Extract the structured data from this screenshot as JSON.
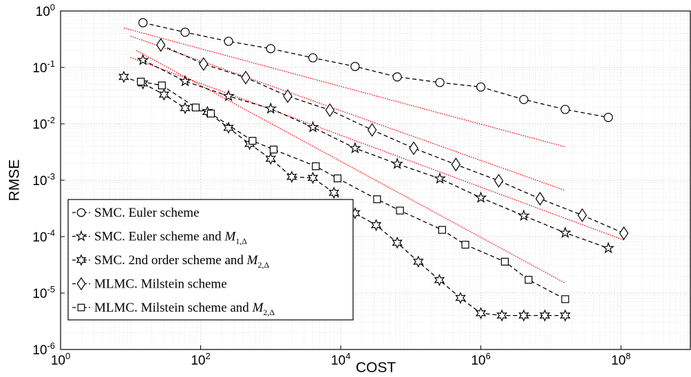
{
  "chart_data": {
    "type": "scatter",
    "xlabel": "COST",
    "ylabel": "RMSE",
    "xscale": "log",
    "yscale": "log",
    "xlim": [
      1,
      1000000000
    ],
    "ylim": [
      1e-06,
      1
    ],
    "xticks": [
      {
        "value": 1,
        "base": "10",
        "exp": "0"
      },
      {
        "value": 100,
        "base": "10",
        "exp": "2"
      },
      {
        "value": 10000,
        "base": "10",
        "exp": "4"
      },
      {
        "value": 1000000,
        "base": "10",
        "exp": "6"
      },
      {
        "value": 100000000,
        "base": "10",
        "exp": "8"
      }
    ],
    "yticks": [
      {
        "value": 1,
        "base": "10",
        "exp": "0"
      },
      {
        "value": 0.1,
        "base": "10",
        "exp": "-1"
      },
      {
        "value": 0.01,
        "base": "10",
        "exp": "-2"
      },
      {
        "value": 0.001,
        "base": "10",
        "exp": "-3"
      },
      {
        "value": 0.0001,
        "base": "10",
        "exp": "-4"
      },
      {
        "value": 1e-05,
        "base": "10",
        "exp": "-5"
      },
      {
        "value": 1e-06,
        "base": "10",
        "exp": "-6"
      }
    ],
    "grid": true,
    "minor_grid": true,
    "legend_position": "bottom-left",
    "series": [
      {
        "name": "SMC. Euler scheme",
        "name_parts": {
          "text": "SMC. Euler scheme",
          "math": "",
          "sub": ""
        },
        "marker": "circle",
        "x": [
          15,
          60,
          250,
          1000,
          4000,
          16000,
          64000,
          260000,
          1000000,
          4100000,
          16000000,
          66000000
        ],
        "y": [
          0.62,
          0.42,
          0.29,
          0.215,
          0.148,
          0.104,
          0.068,
          0.054,
          0.045,
          0.027,
          0.018,
          0.013
        ]
      },
      {
        "name": "SMC. Euler scheme and M1,Δ",
        "name_parts": {
          "text": "SMC. Euler scheme and ",
          "math": "M",
          "sub": "1,Δ"
        },
        "marker": "star5",
        "x": [
          15,
          60,
          250,
          1000,
          4000,
          16000,
          64000,
          260000,
          1000000,
          4100000,
          16000000,
          66000000
        ],
        "y": [
          0.135,
          0.057,
          0.031,
          0.0186,
          0.0087,
          0.0037,
          0.00195,
          0.00107,
          0.00049,
          0.000235,
          0.000117,
          6.25e-05
        ]
      },
      {
        "name": "SMC. 2nd order scheme and M2,Δ",
        "name_parts": {
          "text": "SMC. 2nd order scheme and ",
          "math": "M",
          "sub": "2,Δ"
        },
        "marker": "star6",
        "x": [
          8,
          15,
          30,
          60,
          125,
          250,
          500,
          1000,
          2000,
          4000,
          8000,
          16000,
          32000,
          64000,
          128000,
          256000,
          512000,
          1000000,
          2000000,
          4100000,
          8200000,
          16000000
        ],
        "y": [
          0.068,
          0.052,
          0.033,
          0.019,
          0.0162,
          0.0085,
          0.0044,
          0.0024,
          0.00115,
          0.0011,
          0.0006,
          0.00026,
          0.00016,
          7.8e-05,
          3.6e-05,
          1.7e-05,
          8.2e-06,
          4.4e-06,
          4e-06,
          4e-06,
          4e-06,
          4e-06
        ]
      },
      {
        "name": "MLMC. Milstein scheme",
        "name_parts": {
          "text": "MLMC. Milstein scheme",
          "math": "",
          "sub": ""
        },
        "marker": "diamond",
        "x": [
          27,
          110,
          440,
          1750,
          7000,
          28000,
          110000,
          440000,
          1800000,
          7000000,
          28000000,
          110000000
        ],
        "y": [
          0.25,
          0.115,
          0.066,
          0.031,
          0.0175,
          0.0078,
          0.0037,
          0.0019,
          0.00098,
          0.00047,
          0.00024,
          0.000115
        ]
      },
      {
        "name": "MLMC. Milstein scheme and M2,Δ",
        "name_parts": {
          "text": "MLMC. Milstein scheme and ",
          "math": "M",
          "sub": "2,Δ"
        },
        "marker": "square",
        "x": [
          14,
          28,
          85,
          140,
          550,
          1100,
          4400,
          9000,
          33000,
          70000,
          280000,
          600000,
          2200000,
          4800000,
          16000000
        ],
        "y": [
          0.056,
          0.048,
          0.0195,
          0.0152,
          0.005,
          0.0035,
          0.00177,
          0.00108,
          0.00046,
          0.00029,
          0.000132,
          7.2e-05,
          3.6e-05,
          1.72e-05,
          7.8e-06
        ]
      }
    ],
    "reference_lines": [
      {
        "x": [
          8,
          16000000
        ],
        "y": [
          0.5,
          0.0039
        ]
      },
      {
        "x": [
          10,
          16000000
        ],
        "y": [
          0.36,
          0.00066
        ]
      },
      {
        "x": [
          10,
          110000000
        ],
        "y": [
          0.15,
          8.7e-05
        ]
      },
      {
        "x": [
          12,
          16000000
        ],
        "y": [
          0.2,
          1.5e-05
        ]
      }
    ],
    "reference_line_color": "#e8000b",
    "series_line_color": "#000000",
    "grid_color": "#d9d9d9"
  }
}
